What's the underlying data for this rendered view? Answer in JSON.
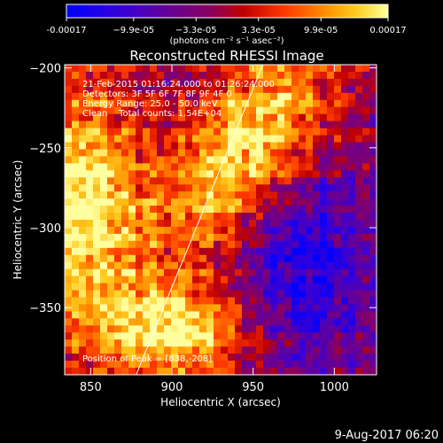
{
  "chart_data": {
    "type": "heatmap",
    "title": "Reconstructed RHESSI Image",
    "xlabel": "Heliocentric X (arcsec)",
    "ylabel": "Heliocentric Y (arcsec)",
    "xlim": [
      834,
      1026
    ],
    "ylim": [
      -392,
      -198
    ],
    "xticks": [
      850,
      900,
      950,
      1000
    ],
    "yticks": [
      -200,
      -250,
      -300,
      -350
    ],
    "colorbar": {
      "min": -0.00017,
      "max": 0.00017,
      "tick_values": [
        -0.00017,
        -9.9e-05,
        -3.3e-05,
        3.3e-05,
        9.9e-05,
        0.00017
      ],
      "tick_labels": [
        "-0.00017",
        "−9.9e-05",
        "−3.3e-05",
        "3.3e-05",
        "9.9e-05",
        "0.00017"
      ],
      "unit_label": "(photons cm⁻² s⁻¹ asec⁻²)"
    },
    "annotations": [
      "21-Feb-2015 01:16:24.000 to 01:26:24.000",
      "Detectors: 3F 5F 6F 7F 8F 9F 4F 0",
      "Energy Range: 25.0 - 50.0 keV",
      "Clean    Total counts: 1.54E+04"
    ],
    "peak_label": "Position of Peak = [838,-208]",
    "limb_line": {
      "x": [
        878,
        956
      ],
      "y": [
        -392,
        -198
      ]
    }
  },
  "footer": {
    "timestamp": "9-Aug-2017 06:20"
  }
}
